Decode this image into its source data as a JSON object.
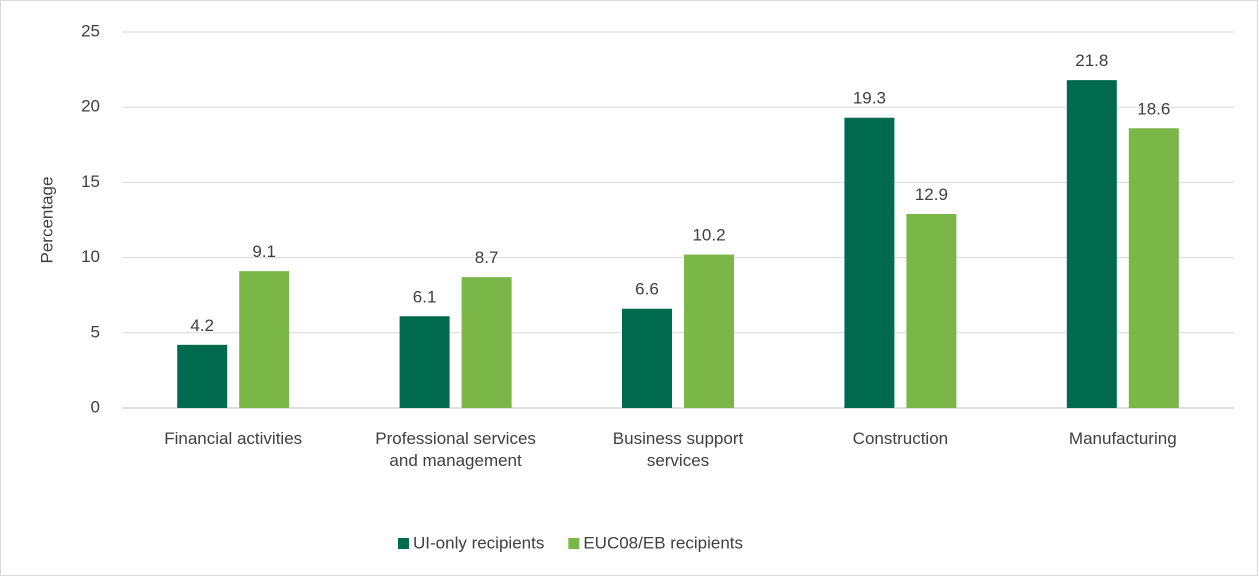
{
  "chart_data": {
    "type": "bar",
    "y_label": "Percentage",
    "categories": [
      "Financial activities",
      "Professional services and management",
      "Business support services",
      "Construction",
      "Manufacturing"
    ],
    "series": [
      {
        "name": "UI-only recipients",
        "color": "#006a4e",
        "values": [
          4.2,
          6.1,
          6.6,
          19.3,
          21.8
        ]
      },
      {
        "name": "EUC08/EB recipients",
        "color": "#7ab648",
        "values": [
          9.1,
          8.7,
          10.2,
          12.9,
          18.6
        ]
      }
    ],
    "ylim": [
      0,
      25
    ],
    "yticks": [
      0,
      5,
      10,
      15,
      20,
      25
    ],
    "grid": true,
    "legend": "bottom"
  }
}
